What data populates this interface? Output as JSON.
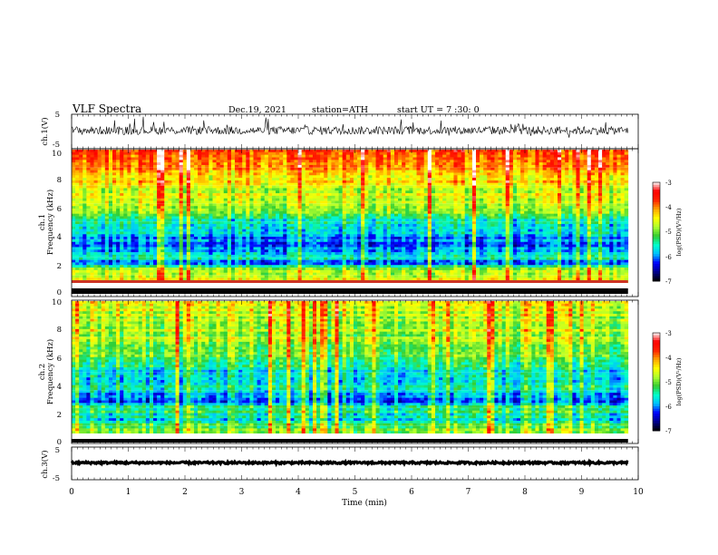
{
  "header": {
    "title": "VLF  Spectra",
    "date": "Dec.19, 2021",
    "station": "station=ATH",
    "start": "start  UT  =   7  :30: 0"
  },
  "chart_data": {
    "type": "heatmap",
    "x_axis": {
      "label": "Time  (min)",
      "range": [
        0,
        10
      ],
      "ticks": [
        "0",
        "1",
        "2",
        "3",
        "4",
        "5",
        "6",
        "7",
        "8",
        "9",
        "10"
      ],
      "data_end": 9.82
    },
    "panels": [
      {
        "id": "ch1-waveform",
        "type": "line",
        "ylabel": "ch.1(V)",
        "ylim": [
          -5,
          5
        ],
        "ticks": [
          "5",
          "-5"
        ],
        "baseline_v": 0.3,
        "noise_amplitude_v": 1.2,
        "spike_amplitude_v": 4.5
      },
      {
        "id": "ch1-spectrogram",
        "type": "heatmap",
        "ylabel_channel": "ch.1",
        "ylabel": "Frequency  (kHz)",
        "ylim": [
          0,
          10
        ],
        "ticks": [
          "0",
          "2",
          "4",
          "6",
          "8",
          "10"
        ],
        "color_profile": [
          {
            "freq_khz": 0.5,
            "log_psd": -4.6
          },
          {
            "freq_khz": 1.0,
            "log_psd": -4.9
          },
          {
            "freq_khz": 1.5,
            "log_psd": -6.3
          },
          {
            "freq_khz": 2.0,
            "log_psd": -5.4
          },
          {
            "freq_khz": 2.5,
            "log_psd": -6.1
          },
          {
            "freq_khz": 3.5,
            "log_psd": -5.9
          },
          {
            "freq_khz": 4.5,
            "log_psd": -5.6
          },
          {
            "freq_khz": 5.5,
            "log_psd": -5.0
          },
          {
            "freq_khz": 6.5,
            "log_psd": -4.7
          },
          {
            "freq_khz": 7.5,
            "log_psd": -4.4
          },
          {
            "freq_khz": 8.5,
            "log_psd": -4.1
          },
          {
            "freq_khz": 9.5,
            "log_psd": -3.9
          }
        ],
        "colorbar": {
          "label": "log(PSD)(V²/Hz)",
          "range": [
            -7,
            -3
          ],
          "ticks": [
            "-3",
            "-4",
            "-5",
            "-6",
            "-7"
          ]
        }
      },
      {
        "id": "ch2-spectrogram",
        "type": "heatmap",
        "ylabel_channel": "ch.2",
        "ylabel": "Frequency  (kHz)",
        "ylim": [
          0,
          10
        ],
        "ticks": [
          "0",
          "2",
          "4",
          "6",
          "8",
          "10"
        ],
        "color_profile": [
          {
            "freq_khz": 0.5,
            "log_psd": -5.0
          },
          {
            "freq_khz": 1.0,
            "log_psd": -5.6
          },
          {
            "freq_khz": 1.5,
            "log_psd": -5.4
          },
          {
            "freq_khz": 2.0,
            "log_psd": -5.2
          },
          {
            "freq_khz": 2.5,
            "log_psd": -6.2
          },
          {
            "freq_khz": 3.5,
            "log_psd": -5.5
          },
          {
            "freq_khz": 4.5,
            "log_psd": -5.8
          },
          {
            "freq_khz": 5.5,
            "log_psd": -5.2
          },
          {
            "freq_khz": 6.5,
            "log_psd": -4.9
          },
          {
            "freq_khz": 7.5,
            "log_psd": -4.8
          },
          {
            "freq_khz": 8.5,
            "log_psd": -4.7
          },
          {
            "freq_khz": 9.5,
            "log_psd": -4.6
          }
        ],
        "colorbar": {
          "label": "log(PSD)(V²/Hz)",
          "range": [
            -7,
            -3
          ],
          "ticks": [
            "-3",
            "-4",
            "-5",
            "-6",
            "-7"
          ]
        }
      },
      {
        "id": "ch3-waveform",
        "type": "line",
        "ylabel": "ch.3(V)",
        "ylim": [
          -5,
          5
        ],
        "ticks": [
          "5",
          "-5"
        ],
        "baseline_v": 0.2,
        "noise_amplitude_v": 0.3,
        "spike_amplitude_v": 0
      }
    ],
    "colormap": [
      "#000000",
      "#00008b",
      "#0000ff",
      "#00bfff",
      "#00ffcc",
      "#32cd32",
      "#adff2f",
      "#ffff00",
      "#ffa500",
      "#ff2200",
      "#ff0000",
      "#ffffff"
    ]
  }
}
